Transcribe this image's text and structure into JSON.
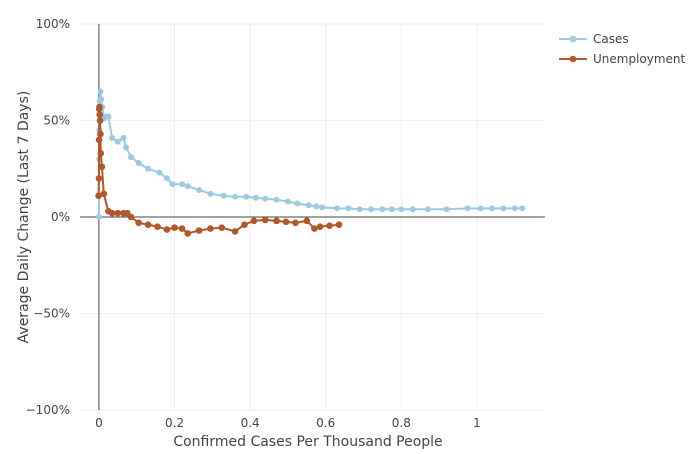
{
  "chart_data": {
    "type": "line",
    "title": "",
    "xlabel": "Confirmed Cases Per Thousand People",
    "ylabel": "Average Daily Change (Last 7 Days)",
    "xlim": [
      -0.05,
      1.18
    ],
    "ylim": [
      -100,
      100
    ],
    "x_ticks": [
      0,
      0.2,
      0.4,
      0.6,
      0.8,
      1
    ],
    "x_tick_labels": [
      "0",
      "0.2",
      "0.4",
      "0.6",
      "0.8",
      "1"
    ],
    "y_ticks": [
      -100,
      -50,
      0,
      50,
      100
    ],
    "y_tick_labels": [
      "−100%",
      "−50%",
      "0%",
      "50%",
      "100%"
    ],
    "grid": true,
    "legend_position": "top-right",
    "series": [
      {
        "name": "Cases",
        "color": "#9ecae1",
        "x": [
          0,
          0.0008,
          0.0015,
          0.0025,
          0.004,
          0.006,
          0.009,
          0.013,
          0.018,
          0.025,
          0.035,
          0.05,
          0.065,
          0.072,
          0.085,
          0.105,
          0.13,
          0.16,
          0.18,
          0.195,
          0.22,
          0.235,
          0.265,
          0.295,
          0.33,
          0.36,
          0.39,
          0.415,
          0.44,
          0.47,
          0.5,
          0.525,
          0.555,
          0.575,
          0.59,
          0.63,
          0.66,
          0.69,
          0.72,
          0.75,
          0.775,
          0.8,
          0.83,
          0.87,
          0.92,
          0.975,
          1.01,
          1.04,
          1.07,
          1.1,
          1.12
        ],
        "y": [
          0,
          30,
          45,
          60,
          65,
          61,
          57,
          51,
          52,
          52,
          41,
          39,
          41,
          36,
          31,
          28,
          25,
          23,
          20,
          17,
          17,
          16,
          14,
          12,
          11,
          10.5,
          10.5,
          10,
          9.5,
          9,
          8,
          7,
          6,
          5.5,
          5,
          4.5,
          4.5,
          4,
          4,
          4,
          4,
          4,
          4,
          4,
          4,
          4.5,
          4.5,
          4.5,
          4.5,
          4.5,
          4.5
        ]
      },
      {
        "name": "Unemployment",
        "color": "#b2572a",
        "x": [
          -0.001,
          0.0,
          0.0005,
          0.001,
          0.0015,
          0.002,
          0.003,
          0.004,
          0.005,
          0.008,
          0.013,
          0.025,
          0.035,
          0.05,
          0.065,
          0.075,
          0.085,
          0.105,
          0.13,
          0.155,
          0.18,
          0.2,
          0.22,
          0.235,
          0.265,
          0.295,
          0.325,
          0.36,
          0.385,
          0.41,
          0.44,
          0.47,
          0.495,
          0.52,
          0.55,
          0.57,
          0.585,
          0.61,
          0.635
        ],
        "y": [
          11,
          20,
          40,
          56,
          57,
          53,
          50,
          43,
          33,
          26,
          12,
          3,
          2,
          2,
          2,
          2,
          0,
          -3,
          -4,
          -5,
          -6.5,
          -5.5,
          -6,
          -8.5,
          -7,
          -6,
          -5.5,
          -7.5,
          -4,
          -2,
          -1.5,
          -2,
          -2.5,
          -3,
          -2,
          -6,
          -5,
          -4.5,
          -4
        ]
      }
    ]
  }
}
